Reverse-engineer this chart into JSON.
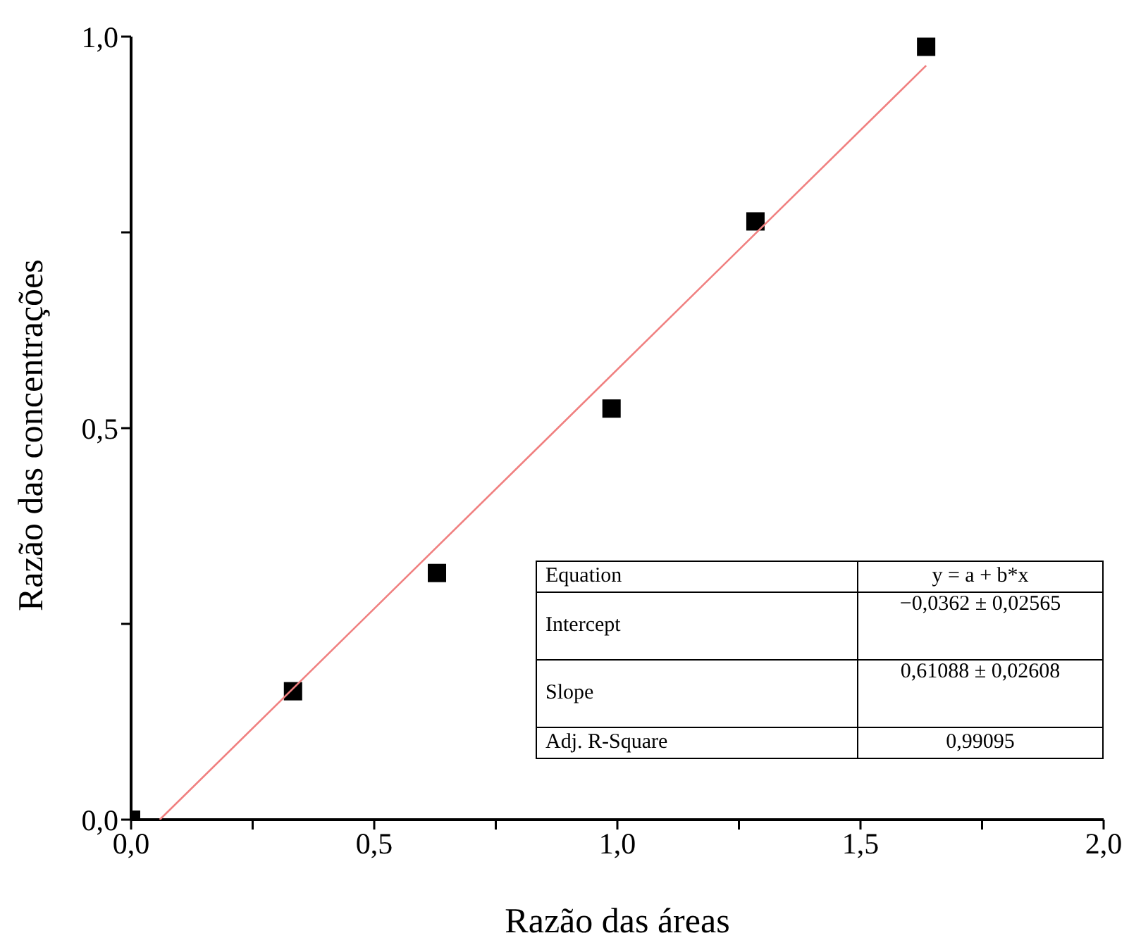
{
  "chart_data": {
    "type": "scatter",
    "xlabel": "Razão das áreas",
    "ylabel": "Razão das concentrações",
    "marker": "square",
    "grid": false,
    "legend": false,
    "xlim": [
      0,
      2
    ],
    "ylim": [
      0,
      1
    ],
    "xticks": [
      {
        "value": 0,
        "label": "0,0"
      },
      {
        "value": 0.25,
        "label": null
      },
      {
        "value": 0.5,
        "label": "0,5"
      },
      {
        "value": 0.75,
        "label": null
      },
      {
        "value": 1,
        "label": "1,0"
      },
      {
        "value": 1.25,
        "label": null
      },
      {
        "value": 1.5,
        "label": "1,5"
      },
      {
        "value": 1.75,
        "label": null
      },
      {
        "value": 2,
        "label": "2,0"
      }
    ],
    "yticks": [
      {
        "value": 0,
        "label": "0,0"
      },
      {
        "value": 0.25,
        "label": null
      },
      {
        "value": 0.5,
        "label": "0,5"
      },
      {
        "value": 0.75,
        "label": null
      },
      {
        "value": 1,
        "label": "1,0"
      }
    ],
    "series": [
      {
        "color": "#000000",
        "x": [
          0,
          0.333,
          0.629,
          0.988,
          1.284,
          1.635
        ],
        "values": [
          0,
          0.164,
          0.315,
          0.525,
          0.764,
          0.987
        ]
      },
      {
        "type": "line",
        "color": "#f08080",
        "marker": "none",
        "x": [
          0.059,
          1.635
        ],
        "values": [
          0,
          0.963
        ]
      }
    ],
    "annotations": [
      "Equation",
      "y = a + b*x",
      "Intercept",
      "−0,0362 ± 0,02565",
      "Slope",
      "0,61088 ± 0,02608",
      "Adj. R-Square",
      "0,99095"
    ]
  }
}
